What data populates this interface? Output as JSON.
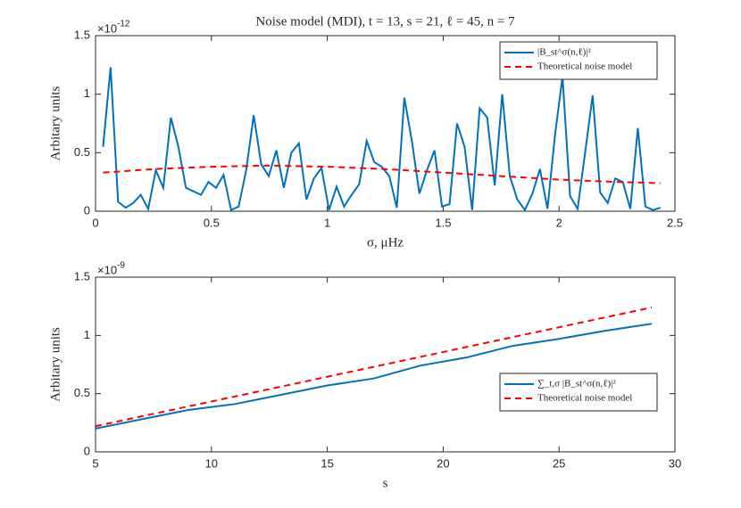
{
  "chart_data": [
    {
      "type": "line",
      "title": "Noise model (MDI), t = 13, s = 21, ℓ = 45, n = 7",
      "xlabel": "σ, μHz",
      "ylabel": "Arbitary units",
      "y_multiplier": "×10",
      "y_exponent": "-12",
      "x": [
        0.0325,
        0.065,
        0.0975,
        0.13,
        0.1625,
        0.195,
        0.2275,
        0.26,
        0.2925,
        0.325,
        0.3575,
        0.39,
        0.4225,
        0.455,
        0.4875,
        0.52,
        0.5525,
        0.585,
        0.6175,
        0.65,
        0.6825,
        0.715,
        0.7475,
        0.78,
        0.8125,
        0.845,
        0.8775,
        0.91,
        0.9425,
        0.975,
        1.0075,
        1.04,
        1.0725,
        1.105,
        1.1375,
        1.17,
        1.2025,
        1.235,
        1.2675,
        1.3,
        1.3325,
        1.365,
        1.3975,
        1.43,
        1.4625,
        1.495,
        1.5275,
        1.56,
        1.5925,
        1.625,
        1.6575,
        1.69,
        1.7225,
        1.755,
        1.7875,
        1.82,
        1.8525,
        1.885,
        1.9175,
        1.95,
        1.9825,
        2.015,
        2.0475,
        2.08,
        2.1125,
        2.145,
        2.1775,
        2.21,
        2.2425,
        2.275,
        2.3075,
        2.34,
        2.3725,
        2.405,
        2.4375
      ],
      "series": [
        {
          "name": "|B_st^σ(n,ℓ)|²",
          "color": "#0072bd",
          "style": "solid",
          "values": [
            0.55,
            1.23,
            0.08,
            0.03,
            0.07,
            0.14,
            0.02,
            0.35,
            0.2,
            0.8,
            0.55,
            0.2,
            0.17,
            0.14,
            0.25,
            0.2,
            0.31,
            0.01,
            0.04,
            0.35,
            0.82,
            0.4,
            0.3,
            0.52,
            0.2,
            0.5,
            0.58,
            0.1,
            0.28,
            0.37,
            0.01,
            0.21,
            0.04,
            0.14,
            0.23,
            0.6,
            0.42,
            0.38,
            0.3,
            0.03,
            0.97,
            0.6,
            0.15,
            0.35,
            0.52,
            0.04,
            0.06,
            0.75,
            0.55,
            0.01,
            0.88,
            0.8,
            0.22,
            1.0,
            0.3,
            0.1,
            0.01,
            0.15,
            0.36,
            0.02,
            0.65,
            1.15,
            0.13,
            0.02,
            0.5,
            0.99,
            0.16,
            0.07,
            0.28,
            0.25,
            0.02,
            0.71,
            0.04,
            0.01,
            0.03
          ]
        },
        {
          "name": "Theoretical noise model",
          "color": "#ff0000",
          "style": "dashed",
          "x": [
            0.0325,
            0.25,
            0.5,
            0.75,
            1.0,
            1.25,
            1.5,
            1.75,
            2.0,
            2.25,
            2.4375
          ],
          "values": [
            0.33,
            0.36,
            0.38,
            0.39,
            0.38,
            0.36,
            0.33,
            0.3,
            0.27,
            0.25,
            0.24
          ]
        }
      ],
      "xlim": [
        0,
        2.5
      ],
      "xticks": [
        0,
        0.5,
        1,
        1.5,
        2,
        2.5
      ],
      "ylim": [
        0,
        1.5
      ],
      "yticks": [
        0,
        0.5,
        1,
        1.5
      ],
      "legend": "northeast"
    },
    {
      "type": "line",
      "xlabel": "s",
      "ylabel": "Arbitary units",
      "y_multiplier": "×10",
      "y_exponent": "-9",
      "x": [
        5,
        7,
        9,
        11,
        13,
        15,
        17,
        19,
        21,
        23,
        25,
        27,
        29
      ],
      "series": [
        {
          "name": "∑_t,σ |B_st^σ(n,ℓ)|²",
          "color": "#0072bd",
          "style": "solid",
          "values": [
            0.2,
            0.28,
            0.36,
            0.41,
            0.49,
            0.57,
            0.63,
            0.74,
            0.81,
            0.91,
            0.97,
            1.04,
            1.1
          ]
        },
        {
          "name": "Theoretical noise model",
          "color": "#ff0000",
          "style": "dashed",
          "values": [
            0.22,
            0.305,
            0.39,
            0.475,
            0.56,
            0.645,
            0.73,
            0.815,
            0.9,
            0.985,
            1.07,
            1.155,
            1.24
          ]
        }
      ],
      "xlim": [
        5,
        30
      ],
      "xticks": [
        5,
        10,
        15,
        20,
        25,
        30
      ],
      "ylim": [
        0,
        1.5
      ],
      "yticks": [
        0,
        0.5,
        1,
        1.5
      ],
      "legend": "east"
    }
  ]
}
